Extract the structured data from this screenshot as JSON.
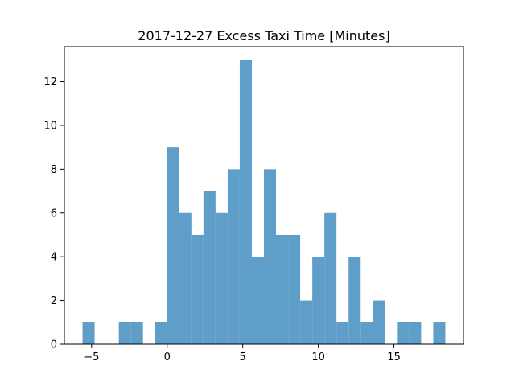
{
  "chart_data": {
    "type": "bar",
    "title": "2017-12-27 Excess Taxi Time [Minutes]",
    "xlabel": "",
    "ylabel": "",
    "xlim": [
      -6.8,
      19.6
    ],
    "ylim": [
      0,
      13.6
    ],
    "x_ticks": [
      -5,
      0,
      5,
      10,
      15
    ],
    "x_tick_labels": [
      "−5",
      "0",
      "5",
      "10",
      "15"
    ],
    "y_ticks": [
      0,
      2,
      4,
      6,
      8,
      10,
      12
    ],
    "y_tick_labels": [
      "0",
      "2",
      "4",
      "6",
      "8",
      "10",
      "12"
    ],
    "bin_width": 0.8,
    "bin_edges_start": -5.6,
    "counts": [
      1,
      0,
      0,
      1,
      1,
      0,
      1,
      9,
      6,
      5,
      7,
      6,
      8,
      13,
      4,
      8,
      5,
      5,
      2,
      4,
      6,
      1,
      4,
      1,
      2,
      0,
      1,
      1,
      0,
      1
    ],
    "bar_color": "#5f9ec8",
    "grid": false,
    "legend": "none"
  }
}
